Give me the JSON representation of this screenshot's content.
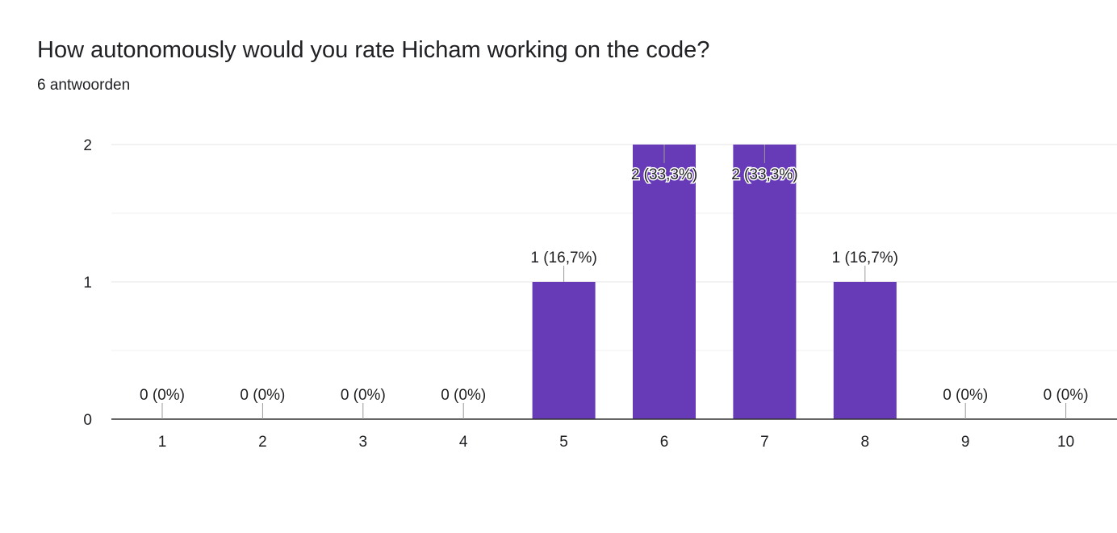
{
  "question": {
    "title": "How autonomously would you rate Hicham working on the code?",
    "response_count": "6 antwoorden"
  },
  "colors": {
    "bar": "#673ab7",
    "grid": "#e6e6e6",
    "axis": "#333333",
    "text": "#202124"
  },
  "chart_data": {
    "type": "bar",
    "title": "",
    "xlabel": "",
    "ylabel": "",
    "categories": [
      "1",
      "2",
      "3",
      "4",
      "5",
      "6",
      "7",
      "8",
      "9",
      "10"
    ],
    "values": [
      0,
      0,
      0,
      0,
      1,
      2,
      2,
      1,
      0,
      0
    ],
    "data_labels": [
      "0 (0%)",
      "0 (0%)",
      "0 (0%)",
      "0 (0%)",
      "1 (16,7%)",
      "2 (33,3%)",
      "2 (33,3%)",
      "1 (16,7%)",
      "0 (0%)",
      "0 (0%)"
    ],
    "ylim": [
      0,
      2
    ],
    "y_ticks": [
      "0",
      "1",
      "2"
    ],
    "grid": true,
    "legend": false
  }
}
